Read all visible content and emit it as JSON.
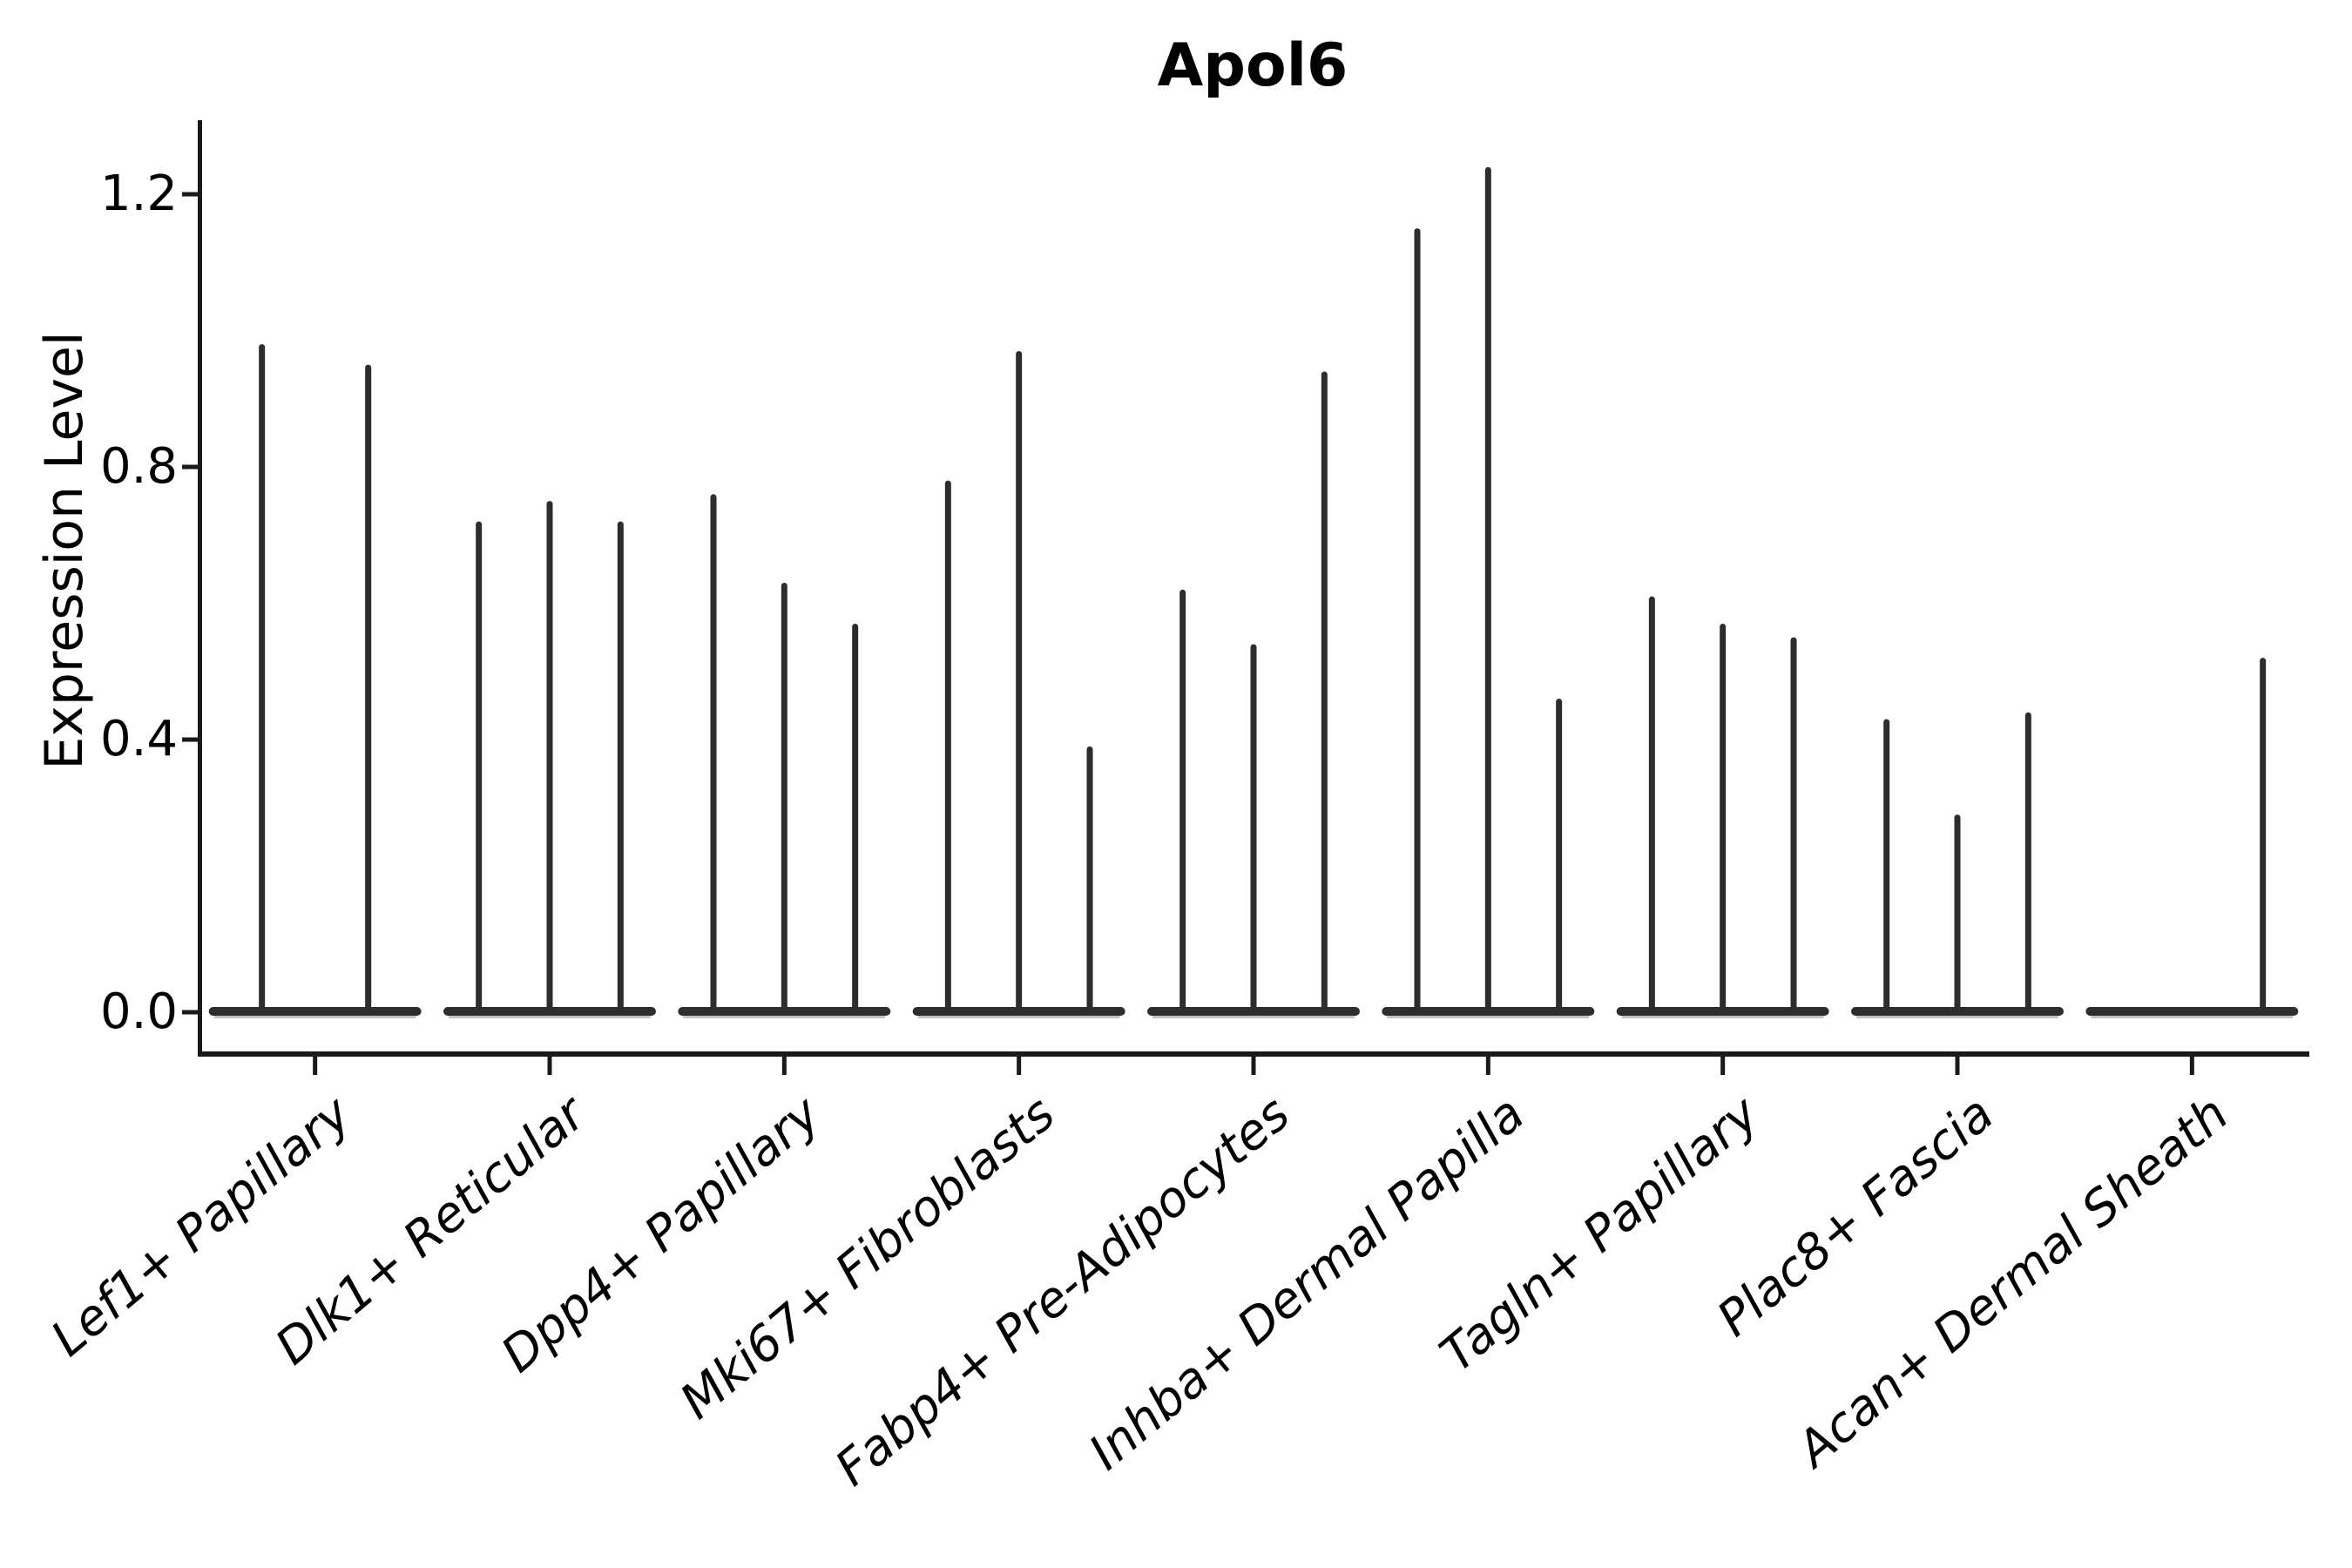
{
  "figure": {
    "title": "Apol6",
    "ylabel": "Expression Level"
  },
  "chart_data": {
    "type": "violin",
    "title": "Apol6",
    "xlabel": "",
    "ylabel": "Expression Level",
    "ylim": [
      0.0,
      1.3
    ],
    "yticks": [
      0.0,
      0.4,
      0.8,
      1.2
    ],
    "ytick_labels": [
      "0.0",
      "0.4",
      "0.8",
      "1.2"
    ],
    "grid": false,
    "legend": "none",
    "background_color": "#ffffff",
    "ink_color": "#2d2d2d",
    "axis_color": "#1a1a1a",
    "baseline_shadow_color": "#9a9a9a",
    "x_label_rotation_deg": 40,
    "x_labels_italic": true,
    "description": "Needle-thin violins: each violin is a flat bar at expression 0 with a thin spike up to its maximum observed expression value.",
    "categories": [
      "Lef1+ Papillary",
      "Dlk1+ Reticular",
      "Dpp4+ Papillary",
      "Mki67+ Fibroblasts",
      "Fabp4+ Pre-Adipocytes",
      "Inhba+ Dermal Papilla",
      "Tagln+ Papillary",
      "Plac8+ Fascia",
      "Acan+ Dermal Sheath"
    ],
    "series": [
      {
        "category": "Lef1+ Papillary",
        "violin_max": [
          0.98,
          0.95
        ]
      },
      {
        "category": "Dlk1+ Reticular",
        "violin_max": [
          0.72,
          0.75,
          0.72
        ]
      },
      {
        "category": "Dpp4+ Papillary",
        "violin_max": [
          0.76,
          0.63,
          0.57
        ]
      },
      {
        "category": "Mki67+ Fibroblasts",
        "violin_max": [
          0.78,
          0.97,
          0.39
        ]
      },
      {
        "category": "Fabp4+ Pre-Adipocytes",
        "violin_max": [
          0.62,
          0.54,
          0.94
        ]
      },
      {
        "category": "Inhba+ Dermal Papilla",
        "violin_max": [
          1.15,
          1.24,
          0.46
        ]
      },
      {
        "category": "Tagln+ Papillary",
        "violin_max": [
          0.61,
          0.57,
          0.55
        ]
      },
      {
        "category": "Plac8+ Fascia",
        "violin_max": [
          0.43,
          0.29,
          0.44
        ]
      },
      {
        "category": "Acan+ Dermal Sheath",
        "violin_max": [
          0.0,
          0.0,
          0.52
        ]
      }
    ]
  }
}
